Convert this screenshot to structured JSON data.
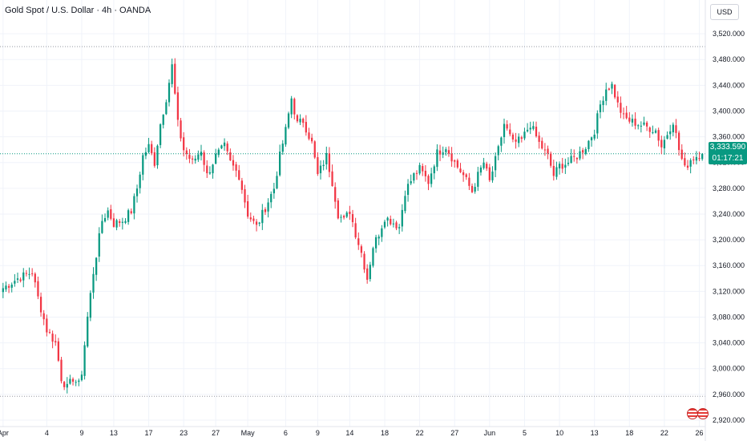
{
  "header": {
    "title": "Gold Spot / U.S. Dollar · 4h · OANDA"
  },
  "currency_button": "USD",
  "price_tag": {
    "price": "3,333.590",
    "countdown": "01:17:21"
  },
  "colors": {
    "up": "#089981",
    "down": "#f23645",
    "grid": "#f0f3fa",
    "text": "#131722"
  },
  "chart_data": {
    "type": "candlestick",
    "title": "Gold Spot / U.S. Dollar · 4h · OANDA",
    "y_axis": {
      "ticks": [
        "3,520.000",
        "3,480.000",
        "3,440.000",
        "3,400.000",
        "3,360.000",
        "3,320.000",
        "3,280.000",
        "3,240.000",
        "3,200.000",
        "3,160.000",
        "3,120.000",
        "3,080.000",
        "3,040.000",
        "3,000.000",
        "2,960.000",
        "2,920.000"
      ],
      "tick_values": [
        3520,
        3480,
        3440,
        3400,
        3360,
        3320,
        3280,
        3240,
        3200,
        3160,
        3120,
        3080,
        3040,
        3000,
        2960,
        2920
      ],
      "ylim": [
        2910,
        3545
      ]
    },
    "x_axis": {
      "ticks": [
        "Apr",
        "4",
        "9",
        "13",
        "17",
        "23",
        "27",
        "May",
        "6",
        "9",
        "14",
        "18",
        "22",
        "27",
        "Jun",
        "5",
        "10",
        "13",
        "18",
        "22",
        "26"
      ],
      "tick_index": [
        0,
        15,
        27,
        38,
        50,
        62,
        73,
        84,
        97,
        108,
        119,
        131,
        143,
        155,
        167,
        179,
        191,
        203,
        215,
        227,
        239
      ],
      "count": 241
    },
    "reference_lines": {
      "high": 3500,
      "low": 2957,
      "last": 3333.59
    },
    "last_price": 3333.59,
    "anchor_closes": [
      [
        0,
        3125
      ],
      [
        5,
        3140
      ],
      [
        10,
        3150
      ],
      [
        12,
        3110
      ],
      [
        15,
        3060
      ],
      [
        18,
        3040
      ],
      [
        20,
        2985
      ],
      [
        22,
        2970
      ],
      [
        24,
        2985
      ],
      [
        26,
        2975
      ],
      [
        27,
        2995
      ],
      [
        29,
        3080
      ],
      [
        31,
        3150
      ],
      [
        34,
        3230
      ],
      [
        36,
        3245
      ],
      [
        38,
        3225
      ],
      [
        41,
        3230
      ],
      [
        44,
        3245
      ],
      [
        46,
        3280
      ],
      [
        48,
        3330
      ],
      [
        50,
        3345
      ],
      [
        52,
        3320
      ],
      [
        54,
        3380
      ],
      [
        56,
        3420
      ],
      [
        58,
        3470
      ],
      [
        60,
        3380
      ],
      [
        62,
        3340
      ],
      [
        65,
        3320
      ],
      [
        68,
        3340
      ],
      [
        70,
        3300
      ],
      [
        73,
        3330
      ],
      [
        76,
        3345
      ],
      [
        78,
        3320
      ],
      [
        81,
        3300
      ],
      [
        84,
        3240
      ],
      [
        87,
        3220
      ],
      [
        90,
        3250
      ],
      [
        93,
        3280
      ],
      [
        95,
        3330
      ],
      [
        97,
        3370
      ],
      [
        99,
        3420
      ],
      [
        101,
        3380
      ],
      [
        103,
        3385
      ],
      [
        106,
        3350
      ],
      [
        108,
        3300
      ],
      [
        111,
        3330
      ],
      [
        113,
        3290
      ],
      [
        115,
        3240
      ],
      [
        117,
        3230
      ],
      [
        119,
        3245
      ],
      [
        121,
        3210
      ],
      [
        123,
        3180
      ],
      [
        125,
        3140
      ],
      [
        127,
        3190
      ],
      [
        129,
        3210
      ],
      [
        131,
        3235
      ],
      [
        133,
        3230
      ],
      [
        136,
        3220
      ],
      [
        138,
        3275
      ],
      [
        141,
        3300
      ],
      [
        143,
        3310
      ],
      [
        146,
        3290
      ],
      [
        149,
        3335
      ],
      [
        152,
        3345
      ],
      [
        155,
        3320
      ],
      [
        158,
        3300
      ],
      [
        161,
        3275
      ],
      [
        163,
        3300
      ],
      [
        165,
        3320
      ],
      [
        167,
        3290
      ],
      [
        170,
        3340
      ],
      [
        172,
        3380
      ],
      [
        175,
        3350
      ],
      [
        178,
        3355
      ],
      [
        181,
        3380
      ],
      [
        184,
        3350
      ],
      [
        187,
        3330
      ],
      [
        189,
        3300
      ],
      [
        191,
        3315
      ],
      [
        194,
        3320
      ],
      [
        197,
        3330
      ],
      [
        200,
        3345
      ],
      [
        203,
        3370
      ],
      [
        205,
        3410
      ],
      [
        207,
        3435
      ],
      [
        209,
        3440
      ],
      [
        211,
        3410
      ],
      [
        213,
        3390
      ],
      [
        215,
        3385
      ],
      [
        218,
        3380
      ],
      [
        221,
        3375
      ],
      [
        224,
        3370
      ],
      [
        226,
        3345
      ],
      [
        228,
        3365
      ],
      [
        230,
        3385
      ],
      [
        232,
        3340
      ],
      [
        234,
        3310
      ],
      [
        236,
        3325
      ],
      [
        238,
        3330
      ],
      [
        240,
        3334
      ]
    ]
  }
}
